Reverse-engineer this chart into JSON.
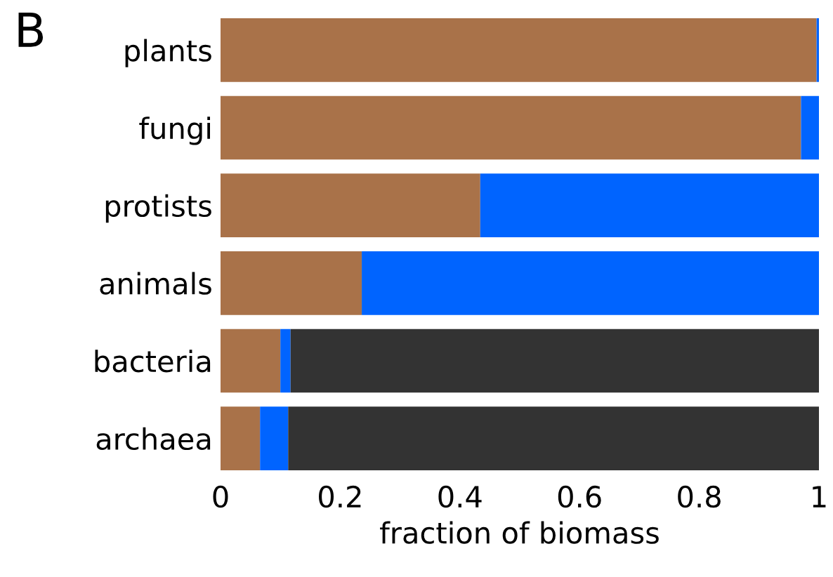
{
  "chart_data": {
    "type": "bar",
    "orientation": "horizontal",
    "stacked": true,
    "title": "B",
    "xlabel": "fraction of biomass",
    "categories": [
      "plants",
      "fungi",
      "protists",
      "animals",
      "bacteria",
      "archaea"
    ],
    "series": [
      {
        "color": "#a97249",
        "values": [
          0.996,
          0.97,
          0.434,
          0.236,
          0.1,
          0.066
        ]
      },
      {
        "color": "#0064ff",
        "values": [
          0.004,
          0.03,
          0.566,
          0.764,
          0.017,
          0.047
        ]
      },
      {
        "color": "#333333",
        "values": [
          null,
          null,
          null,
          null,
          0.883,
          0.887
        ]
      }
    ],
    "xlim": [
      0,
      1
    ],
    "xticks": [
      0,
      0.2,
      0.4,
      0.6,
      0.8,
      1
    ],
    "grid": false,
    "legend": false
  }
}
